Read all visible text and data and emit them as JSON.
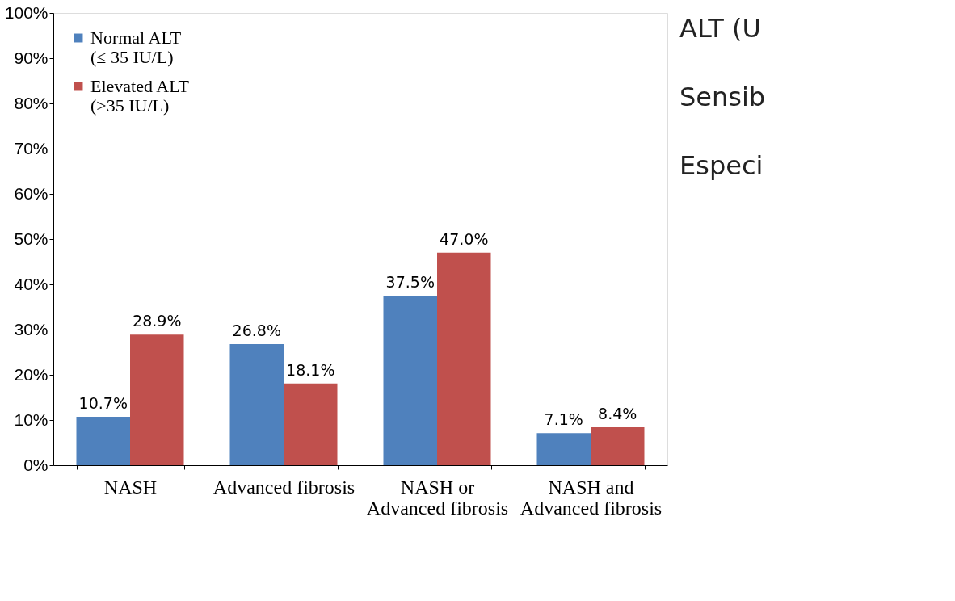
{
  "chart_data": {
    "type": "bar",
    "categories": [
      "NASH",
      "Advanced fibrosis",
      "NASH or\nAdvanced fibrosis",
      "NASH and\nAdvanced fibrosis"
    ],
    "series": [
      {
        "name": "Normal ALT\n(≤ 35 IU/L)",
        "color": "#4f81bd",
        "values": [
          10.7,
          26.8,
          37.5,
          7.1
        ],
        "value_labels": [
          "10.7%",
          "26.8%",
          "37.5%",
          "7.1%"
        ]
      },
      {
        "name": "Elevated ALT\n(>35 IU/L)",
        "color": "#c0504d",
        "values": [
          28.9,
          18.1,
          47.0,
          8.4
        ],
        "value_labels": [
          "28.9%",
          "18.1%",
          "47.0%",
          "8.4%"
        ]
      }
    ],
    "ylim": [
      0,
      100
    ],
    "yticks": [
      {
        "value": 0,
        "label": "0%"
      },
      {
        "value": 10,
        "label": "10%"
      },
      {
        "value": 20,
        "label": "20%"
      },
      {
        "value": 30,
        "label": "30%"
      },
      {
        "value": 40,
        "label": "40%"
      },
      {
        "value": 50,
        "label": "50%"
      },
      {
        "value": 60,
        "label": "60%"
      },
      {
        "value": 70,
        "label": "70%"
      },
      {
        "value": 80,
        "label": "80%"
      },
      {
        "value": 90,
        "label": "90%"
      },
      {
        "value": 100,
        "label": "100%"
      }
    ],
    "grid": false,
    "legend": "top left",
    "annotations": [
      "ALT (U",
      "Sensib",
      "Especi"
    ]
  }
}
